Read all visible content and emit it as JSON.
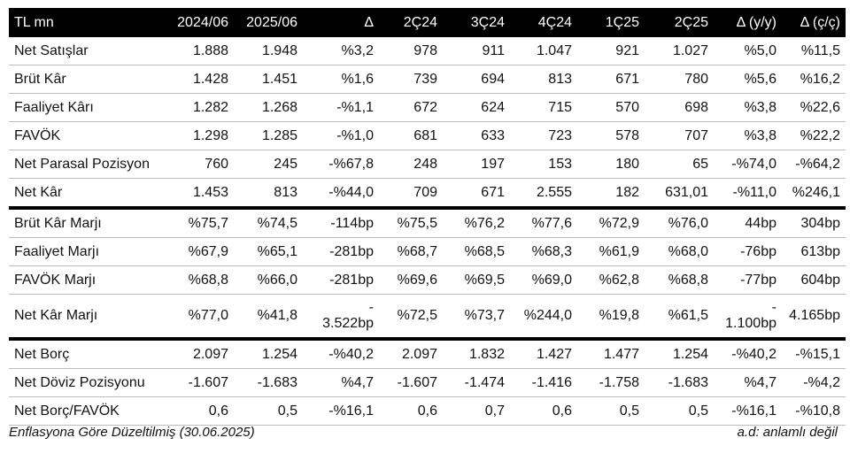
{
  "header": [
    "TL mn",
    "2024/06",
    "2025/06",
    "Δ",
    "2Ç24",
    "3Ç24",
    "4Ç24",
    "1Ç25",
    "2Ç25",
    "Δ (y/y)",
    "Δ (ç/ç)"
  ],
  "rows": [
    [
      "Net Satışlar",
      "1.888",
      "1.948",
      "%3,2",
      "978",
      "911",
      "1.047",
      "921",
      "1.027",
      "%5,0",
      "%11,5"
    ],
    [
      "Brüt Kâr",
      "1.428",
      "1.451",
      "%1,6",
      "739",
      "694",
      "813",
      "671",
      "780",
      "%5,6",
      "%16,2"
    ],
    [
      "Faaliyet Kârı",
      "1.282",
      "1.268",
      "-%1,1",
      "672",
      "624",
      "715",
      "570",
      "698",
      "%3,8",
      "%22,6"
    ],
    [
      "FAVÖK",
      "1.298",
      "1.285",
      "-%1,0",
      "681",
      "633",
      "723",
      "578",
      "707",
      "%3,8",
      "%22,2"
    ],
    [
      "Net Parasal Pozisyon",
      "760",
      "245",
      "-%67,8",
      "248",
      "197",
      "153",
      "180",
      "65",
      "-%74,0",
      "-%64,2"
    ],
    [
      "Net Kâr",
      "1.453",
      "813",
      "-%44,0",
      "709",
      "671",
      "2.555",
      "182",
      "631,01",
      "-%11,0",
      "%246,1"
    ],
    [
      "Brüt Kâr Marjı",
      "%75,7",
      "%74,5",
      "-114bp",
      "%75,5",
      "%76,2",
      "%77,6",
      "%72,9",
      "%76,0",
      "44bp",
      "304bp"
    ],
    [
      "Faaliyet Marjı",
      "%67,9",
      "%65,1",
      "-281bp",
      "%68,7",
      "%68,5",
      "%68,3",
      "%61,9",
      "%68,0",
      "-76bp",
      "613bp"
    ],
    [
      "FAVÖK Marjı",
      "%68,8",
      "%66,0",
      "-281bp",
      "%69,6",
      "%69,5",
      "%69,0",
      "%62,8",
      "%68,8",
      "-77bp",
      "604bp"
    ],
    [
      "Net Kâr Marjı",
      "%77,0",
      "%41,8",
      "-3.522bp",
      "%72,5",
      "%73,7",
      "%244,0",
      "%19,8",
      "%61,5",
      "-1.100bp",
      "4.165bp"
    ],
    [
      "Net Borç",
      "2.097",
      "1.254",
      "-%40,2",
      "2.097",
      "1.832",
      "1.427",
      "1.477",
      "1.254",
      "-%40,2",
      "-%15,1"
    ],
    [
      "Net Döviz Pozisyonu",
      "-1.607",
      "-1.683",
      "%4,7",
      "-1.607",
      "-1.474",
      "-1.416",
      "-1.758",
      "-1.683",
      "%4,7",
      "-%4,2"
    ],
    [
      "Net Borç/FAVÖK",
      "0,6",
      "0,5",
      "-%16,1",
      "0,6",
      "0,7",
      "0,6",
      "0,5",
      "0,5",
      "-%16,1",
      "-%10,8"
    ]
  ],
  "footer": {
    "left": "Enflasyona Göre Düzeltilmiş (30.06.2025)",
    "right": "a.d: anlamlı değil"
  }
}
